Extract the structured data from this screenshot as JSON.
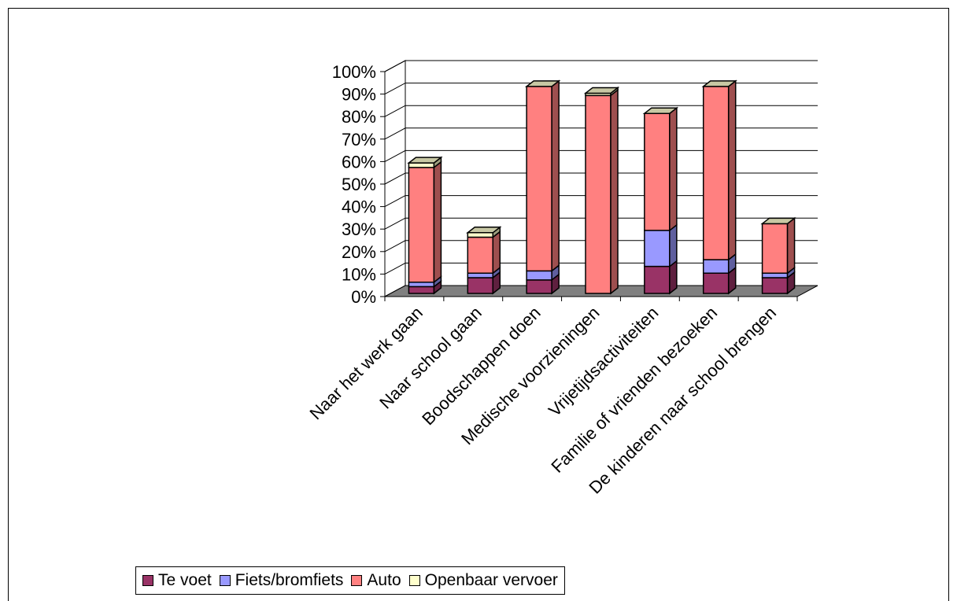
{
  "chart_data": {
    "type": "bar",
    "stacked": true,
    "three_d": true,
    "title": "",
    "xlabel": "",
    "ylabel": "",
    "ylim": [
      0,
      100
    ],
    "y_ticks": [
      "0%",
      "10%",
      "20%",
      "30%",
      "40%",
      "50%",
      "60%",
      "70%",
      "80%",
      "90%",
      "100%"
    ],
    "grid": true,
    "legend_position": "bottom",
    "categories": [
      "Naar het werk gaan",
      "Naar school gaan",
      "Boodschappen doen",
      "Medische voorzieningen",
      "Vrijetijdsactiviteiten",
      "Familie of vrienden bezoeken",
      "De kinderen naar school brengen"
    ],
    "series": [
      {
        "name": "Te voet",
        "color": "#993366",
        "values": [
          3,
          7,
          6,
          0,
          12,
          9,
          7
        ]
      },
      {
        "name": "Fiets/bromfiets",
        "color": "#9999FF",
        "values": [
          2,
          2,
          4,
          0,
          16,
          6,
          2
        ]
      },
      {
        "name": "Auto",
        "color": "#FF8080",
        "values": [
          51,
          16,
          82,
          88,
          52,
          77,
          22
        ]
      },
      {
        "name": "Openbaar vervoer",
        "color": "#FFFFCC",
        "values": [
          2,
          2,
          0,
          1,
          0,
          0,
          0
        ]
      }
    ]
  }
}
